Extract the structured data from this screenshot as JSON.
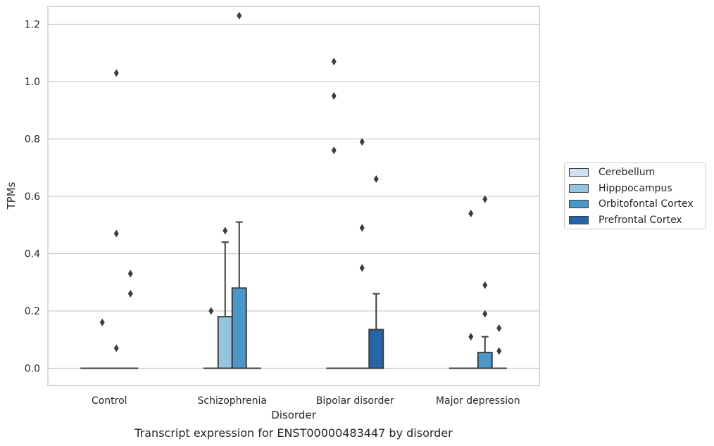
{
  "chart_data": {
    "type": "box",
    "xlabel": "Disorder",
    "ylabel": "TPMs",
    "caption": "Transcript expression for ENST00000483447 by disorder",
    "ylim": [
      -0.06,
      1.29
    ],
    "yticks": [
      0.0,
      0.2,
      0.4,
      0.6,
      0.8,
      1.0,
      1.2
    ],
    "ytick_labels": [
      "0.0",
      "0.2",
      "0.4",
      "0.6",
      "0.8",
      "1.0",
      "1.2"
    ],
    "grid": true,
    "legend_position": "right",
    "categories": [
      "Control",
      "Schizophrenia",
      "Bipolar disorder",
      "Major depression"
    ],
    "series": [
      {
        "name": "Cerebellum",
        "color": "#d0e1f2",
        "boxes": [
          {
            "q1": 0,
            "median": 0,
            "q3": 0,
            "whisker_low": 0,
            "whisker_high": 0,
            "outliers": []
          },
          {
            "q1": 0,
            "median": 0,
            "q3": 0,
            "whisker_low": 0,
            "whisker_high": 0,
            "outliers": [
              0.2
            ]
          },
          {
            "q1": 0,
            "median": 0,
            "q3": 0,
            "whisker_low": 0,
            "whisker_high": 0,
            "outliers": [
              1.07,
              0.95,
              0.76
            ]
          },
          {
            "q1": 0,
            "median": 0,
            "q3": 0,
            "whisker_low": 0,
            "whisker_high": 0,
            "outliers": []
          }
        ]
      },
      {
        "name": "Hipppocampus",
        "color": "#94c4df",
        "boxes": [
          {
            "q1": 0,
            "median": 0,
            "q3": 0,
            "whisker_low": 0,
            "whisker_high": 0,
            "outliers": [
              0.16
            ]
          },
          {
            "q1": 0,
            "median": 0,
            "q3": 0.18,
            "whisker_low": 0,
            "whisker_high": 0.44,
            "outliers": [
              0.48
            ]
          },
          {
            "q1": 0,
            "median": 0,
            "q3": 0,
            "whisker_low": 0,
            "whisker_high": 0,
            "outliers": []
          },
          {
            "q1": 0,
            "median": 0,
            "q3": 0,
            "whisker_low": 0,
            "whisker_high": 0,
            "outliers": [
              0.54,
              0.11
            ]
          }
        ]
      },
      {
        "name": "Orbitofontal Cortex",
        "color": "#4a98c9",
        "boxes": [
          {
            "q1": 0,
            "median": 0,
            "q3": 0,
            "whisker_low": 0,
            "whisker_high": 0,
            "outliers": [
              1.03,
              0.47,
              0.07
            ]
          },
          {
            "q1": 0,
            "median": 0,
            "q3": 0.28,
            "whisker_low": 0,
            "whisker_high": 0.51,
            "outliers": [
              1.23
            ]
          },
          {
            "q1": 0,
            "median": 0,
            "q3": 0,
            "whisker_low": 0,
            "whisker_high": 0,
            "outliers": [
              0.79,
              0.49,
              0.35
            ]
          },
          {
            "q1": 0,
            "median": 0,
            "q3": 0.055,
            "whisker_low": 0,
            "whisker_high": 0.11,
            "outliers": [
              0.59,
              0.29,
              0.19
            ]
          }
        ]
      },
      {
        "name": "Prefrontal Cortex",
        "color": "#2565a8",
        "boxes": [
          {
            "q1": 0,
            "median": 0,
            "q3": 0,
            "whisker_low": 0,
            "whisker_high": 0,
            "outliers": [
              0.33,
              0.26
            ]
          },
          {
            "q1": 0,
            "median": 0,
            "q3": 0,
            "whisker_low": 0,
            "whisker_high": 0,
            "outliers": []
          },
          {
            "q1": 0,
            "median": 0,
            "q3": 0.135,
            "whisker_low": 0,
            "whisker_high": 0.26,
            "outliers": [
              0.66
            ]
          },
          {
            "q1": 0,
            "median": 0,
            "q3": 0,
            "whisker_low": 0,
            "whisker_high": 0,
            "outliers": [
              0.14,
              0.06
            ]
          }
        ]
      }
    ]
  }
}
